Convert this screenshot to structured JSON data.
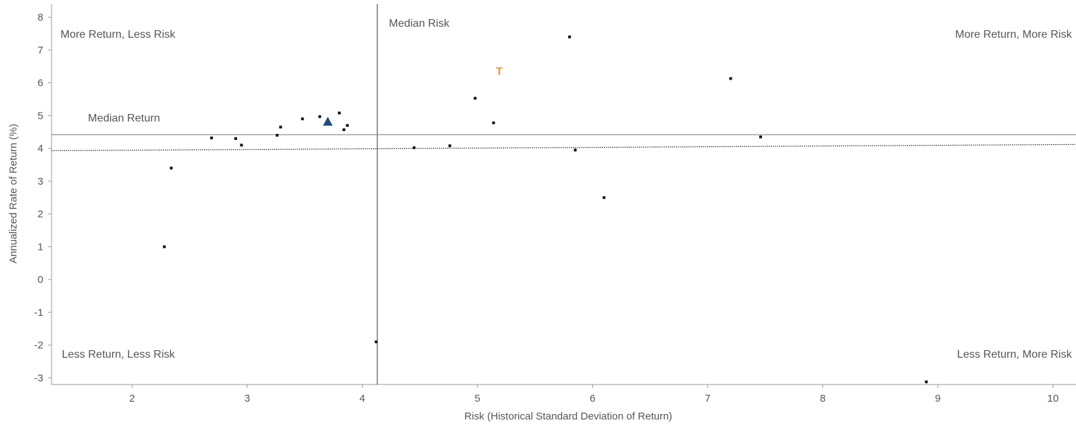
{
  "chart_data": {
    "type": "scatter",
    "title": "",
    "xlabel": "Risk (Historical Standard Deviation of Return)",
    "ylabel": "Annualized Rate of Return (%)",
    "xlim": [
      1.3,
      10.2
    ],
    "ylim": [
      -3.2,
      8.4
    ],
    "x_ticks": [
      2,
      3,
      4,
      5,
      6,
      7,
      8,
      9,
      10
    ],
    "y_ticks": [
      8,
      7,
      6,
      5,
      4,
      3,
      2,
      1,
      0,
      -1,
      -2,
      -3
    ],
    "grid": false,
    "median_risk": 4.13,
    "median_return": 4.42,
    "trend_line": {
      "x": [
        1.3,
        10.2
      ],
      "y": [
        3.93,
        4.12
      ]
    },
    "points": [
      {
        "x": 2.28,
        "y": 1.0
      },
      {
        "x": 2.34,
        "y": 3.4
      },
      {
        "x": 2.69,
        "y": 4.32
      },
      {
        "x": 2.9,
        "y": 4.3
      },
      {
        "x": 2.95,
        "y": 4.1
      },
      {
        "x": 3.26,
        "y": 4.4
      },
      {
        "x": 3.29,
        "y": 4.65
      },
      {
        "x": 3.48,
        "y": 4.9
      },
      {
        "x": 3.63,
        "y": 4.97
      },
      {
        "x": 3.8,
        "y": 5.08
      },
      {
        "x": 3.84,
        "y": 4.57
      },
      {
        "x": 3.87,
        "y": 4.7
      },
      {
        "x": 4.12,
        "y": -1.9
      },
      {
        "x": 4.45,
        "y": 4.02
      },
      {
        "x": 4.76,
        "y": 4.08
      },
      {
        "x": 4.98,
        "y": 5.53
      },
      {
        "x": 5.14,
        "y": 4.78
      },
      {
        "x": 5.8,
        "y": 7.4
      },
      {
        "x": 5.85,
        "y": 3.95
      },
      {
        "x": 6.1,
        "y": 2.5
      },
      {
        "x": 7.2,
        "y": 6.13
      },
      {
        "x": 7.46,
        "y": 4.35
      },
      {
        "x": 8.9,
        "y": -3.12
      }
    ],
    "highlight_points": [
      {
        "marker": "triangle",
        "x": 3.7,
        "y": 4.82,
        "color": "#1f4e79"
      },
      {
        "marker": "T",
        "x": 5.19,
        "y": 6.37,
        "color": "#f0962d"
      }
    ],
    "median_risk_label": "Median Risk",
    "median_return_label": "Median Return",
    "quadrant_labels": {
      "top_left": "More Return, Less Risk",
      "top_right": "More Return, More Risk",
      "bottom_left": "Less Return, Less Risk",
      "bottom_right": "Less Return, More Risk"
    },
    "colors": {
      "axis": "#999999",
      "text": "#555555",
      "point": "#111111",
      "median": "#555555"
    }
  }
}
